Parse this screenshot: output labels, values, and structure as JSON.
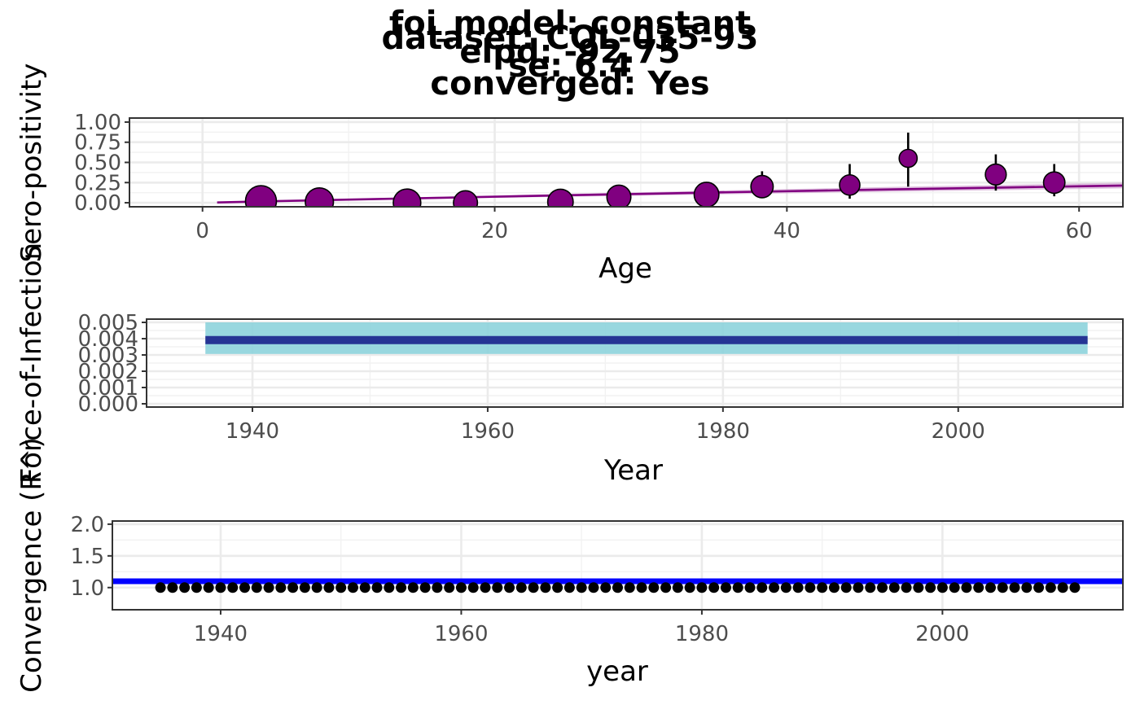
{
  "title_lines": [
    "foi_model: constant",
    "dataset: COL-035-93",
    "elpd: -92.75",
    "se: 6.4",
    "converged: Yes"
  ],
  "colors": {
    "seroprev_points": "#800080",
    "seroprev_line": "#800080",
    "seroprev_ribbon": "#cc99cc",
    "foi_line": "#253494",
    "foi_ribbon": "#8dd3db",
    "convergence_line": "#0000ff",
    "convergence_points": "#000000"
  },
  "chart_data": [
    {
      "type": "scatter",
      "xlabel": "Age",
      "ylabel": "Sero-positivity",
      "xlim": [
        -5,
        63
      ],
      "ylim": [
        -0.05,
        1.05
      ],
      "xticks": [
        0,
        20,
        40,
        60
      ],
      "yticks": [
        0.0,
        0.25,
        0.5,
        0.75,
        1.0
      ],
      "ytick_labels": [
        "0.00",
        "0.25",
        "0.50",
        "0.75",
        "1.00"
      ],
      "grid": true,
      "points": [
        {
          "x": 4,
          "y": 0.02,
          "lo": 0.0,
          "hi": 0.05,
          "n": 40
        },
        {
          "x": 8,
          "y": 0.01,
          "lo": 0.0,
          "hi": 0.04,
          "n": 30
        },
        {
          "x": 14,
          "y": 0.0,
          "lo": 0.0,
          "hi": 0.04,
          "n": 28
        },
        {
          "x": 18,
          "y": 0.0,
          "lo": 0.0,
          "hi": 0.06,
          "n": 18
        },
        {
          "x": 24.5,
          "y": 0.01,
          "lo": 0.0,
          "hi": 0.06,
          "n": 22
        },
        {
          "x": 28.5,
          "y": 0.07,
          "lo": 0.02,
          "hi": 0.16,
          "n": 18
        },
        {
          "x": 34.5,
          "y": 0.1,
          "lo": 0.05,
          "hi": 0.2,
          "n": 20
        },
        {
          "x": 38.3,
          "y": 0.2,
          "lo": 0.07,
          "hi": 0.39,
          "n": 14
        },
        {
          "x": 44.3,
          "y": 0.22,
          "lo": 0.05,
          "hi": 0.48,
          "n": 10
        },
        {
          "x": 48.3,
          "y": 0.55,
          "lo": 0.2,
          "hi": 0.87,
          "n": 6
        },
        {
          "x": 54.3,
          "y": 0.35,
          "lo": 0.15,
          "hi": 0.6,
          "n": 11
        },
        {
          "x": 58.3,
          "y": 0.25,
          "lo": 0.08,
          "hi": 0.48,
          "n": 12
        }
      ],
      "fit_line": {
        "x": [
          1,
          5,
          10,
          15,
          20,
          25,
          30,
          35,
          40,
          45,
          50,
          55,
          60,
          63
        ],
        "y": [
          0.004,
          0.02,
          0.039,
          0.057,
          0.075,
          0.093,
          0.11,
          0.127,
          0.143,
          0.159,
          0.174,
          0.189,
          0.204,
          0.213
        ],
        "lo": [
          0.003,
          0.015,
          0.03,
          0.045,
          0.06,
          0.075,
          0.089,
          0.103,
          0.117,
          0.131,
          0.144,
          0.157,
          0.17,
          0.178
        ],
        "hi": [
          0.005,
          0.025,
          0.048,
          0.07,
          0.091,
          0.111,
          0.131,
          0.151,
          0.17,
          0.188,
          0.206,
          0.223,
          0.239,
          0.249
        ]
      }
    },
    {
      "type": "line",
      "xlabel": "Year",
      "ylabel": "Force-of-Infection",
      "xlim": [
        1931,
        2014
      ],
      "ylim": [
        -0.0002,
        0.0052
      ],
      "xticks": [
        1940,
        1960,
        1980,
        2000
      ],
      "yticks": [
        0.0,
        0.001,
        0.002,
        0.003,
        0.004,
        0.005
      ],
      "ytick_labels": [
        "0.000",
        "0.001",
        "0.002",
        "0.003",
        "0.004",
        "0.005"
      ],
      "grid": true,
      "x": [
        1936,
        2011
      ],
      "y": [
        0.00391,
        0.00391
      ],
      "lo": [
        0.00306,
        0.00306
      ],
      "hi": [
        0.005,
        0.005
      ]
    },
    {
      "type": "scatter",
      "xlabel": "year",
      "ylabel": "Convergence (R^)",
      "xlim": [
        1931,
        2015
      ],
      "ylim": [
        0.65,
        2.05
      ],
      "xticks": [
        1940,
        1960,
        1980,
        2000
      ],
      "yticks": [
        1.0,
        1.5,
        2.0
      ],
      "ytick_labels": [
        "1.0",
        "1.5",
        "2.0"
      ],
      "grid": true,
      "hline": 1.1,
      "x_start": 1935,
      "x_end": 2011,
      "y_value": 1.0
    }
  ]
}
